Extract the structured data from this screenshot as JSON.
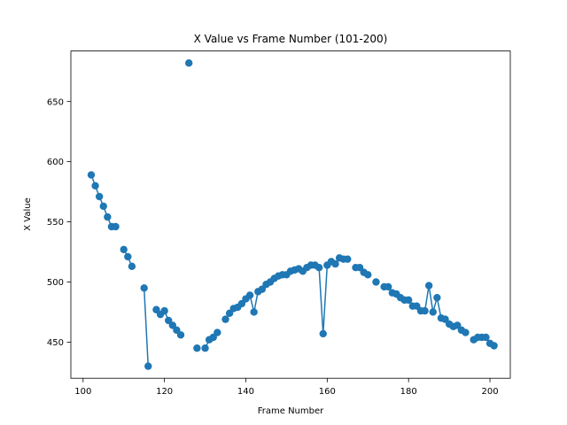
{
  "chart_data": {
    "type": "line",
    "title": "X Value vs Frame Number (101-200)",
    "xlabel": "Frame Number",
    "ylabel": "X Value",
    "xlim": [
      97,
      205
    ],
    "ylim": [
      420,
      692
    ],
    "xticks": [
      100,
      120,
      140,
      160,
      180,
      200
    ],
    "yticks": [
      450,
      500,
      550,
      600,
      650
    ],
    "grid": false,
    "series": [
      {
        "color": "#1f77b4",
        "marker": "circle",
        "points": [
          {
            "x": 102,
            "y": 589,
            "gap_before": false
          },
          {
            "x": 103,
            "y": 580,
            "gap_before": false
          },
          {
            "x": 104,
            "y": 571,
            "gap_before": false
          },
          {
            "x": 105,
            "y": 563,
            "gap_before": false
          },
          {
            "x": 106,
            "y": 554,
            "gap_before": false
          },
          {
            "x": 107,
            "y": 546,
            "gap_before": false
          },
          {
            "x": 108,
            "y": 546,
            "gap_before": false
          },
          {
            "x": 110,
            "y": 527,
            "gap_before": true
          },
          {
            "x": 111,
            "y": 521,
            "gap_before": false
          },
          {
            "x": 112,
            "y": 513,
            "gap_before": false
          },
          {
            "x": 115,
            "y": 495,
            "gap_before": true
          },
          {
            "x": 116,
            "y": 430,
            "gap_before": false
          },
          {
            "x": 118,
            "y": 477,
            "gap_before": true
          },
          {
            "x": 119,
            "y": 473,
            "gap_before": false
          },
          {
            "x": 120,
            "y": 476,
            "gap_before": false
          },
          {
            "x": 121,
            "y": 468,
            "gap_before": false
          },
          {
            "x": 122,
            "y": 464,
            "gap_before": false
          },
          {
            "x": 123,
            "y": 460,
            "gap_before": false
          },
          {
            "x": 124,
            "y": 456,
            "gap_before": false
          },
          {
            "x": 126,
            "y": 682,
            "gap_before": true
          },
          {
            "x": 128,
            "y": 445,
            "gap_before": true
          },
          {
            "x": 130,
            "y": 445,
            "gap_before": true
          },
          {
            "x": 131,
            "y": 452,
            "gap_before": false
          },
          {
            "x": 132,
            "y": 454,
            "gap_before": false
          },
          {
            "x": 133,
            "y": 458,
            "gap_before": false
          },
          {
            "x": 135,
            "y": 469,
            "gap_before": true
          },
          {
            "x": 136,
            "y": 474,
            "gap_before": false
          },
          {
            "x": 137,
            "y": 478,
            "gap_before": false
          },
          {
            "x": 138,
            "y": 479,
            "gap_before": false
          },
          {
            "x": 139,
            "y": 482,
            "gap_before": false
          },
          {
            "x": 140,
            "y": 486,
            "gap_before": false
          },
          {
            "x": 141,
            "y": 489,
            "gap_before": false
          },
          {
            "x": 142,
            "y": 475,
            "gap_before": false
          },
          {
            "x": 143,
            "y": 492,
            "gap_before": false
          },
          {
            "x": 144,
            "y": 494,
            "gap_before": false
          },
          {
            "x": 145,
            "y": 498,
            "gap_before": false
          },
          {
            "x": 146,
            "y": 500,
            "gap_before": false
          },
          {
            "x": 147,
            "y": 503,
            "gap_before": false
          },
          {
            "x": 148,
            "y": 505,
            "gap_before": false
          },
          {
            "x": 149,
            "y": 506,
            "gap_before": false
          },
          {
            "x": 150,
            "y": 506,
            "gap_before": false
          },
          {
            "x": 151,
            "y": 509,
            "gap_before": false
          },
          {
            "x": 152,
            "y": 510,
            "gap_before": false
          },
          {
            "x": 153,
            "y": 511,
            "gap_before": false
          },
          {
            "x": 154,
            "y": 509,
            "gap_before": false
          },
          {
            "x": 155,
            "y": 512,
            "gap_before": false
          },
          {
            "x": 156,
            "y": 514,
            "gap_before": false
          },
          {
            "x": 157,
            "y": 514,
            "gap_before": false
          },
          {
            "x": 158,
            "y": 512,
            "gap_before": false
          },
          {
            "x": 159,
            "y": 457,
            "gap_before": false
          },
          {
            "x": 160,
            "y": 514,
            "gap_before": false
          },
          {
            "x": 161,
            "y": 517,
            "gap_before": false
          },
          {
            "x": 162,
            "y": 515,
            "gap_before": false
          },
          {
            "x": 163,
            "y": 520,
            "gap_before": false
          },
          {
            "x": 164,
            "y": 519,
            "gap_before": false
          },
          {
            "x": 165,
            "y": 519,
            "gap_before": false
          },
          {
            "x": 167,
            "y": 512,
            "gap_before": true
          },
          {
            "x": 168,
            "y": 512,
            "gap_before": false
          },
          {
            "x": 169,
            "y": 508,
            "gap_before": false
          },
          {
            "x": 170,
            "y": 506,
            "gap_before": false
          },
          {
            "x": 172,
            "y": 500,
            "gap_before": true
          },
          {
            "x": 174,
            "y": 496,
            "gap_before": true
          },
          {
            "x": 175,
            "y": 496,
            "gap_before": false
          },
          {
            "x": 176,
            "y": 491,
            "gap_before": false
          },
          {
            "x": 177,
            "y": 490,
            "gap_before": false
          },
          {
            "x": 178,
            "y": 487,
            "gap_before": false
          },
          {
            "x": 179,
            "y": 485,
            "gap_before": false
          },
          {
            "x": 180,
            "y": 485,
            "gap_before": false
          },
          {
            "x": 181,
            "y": 480,
            "gap_before": false
          },
          {
            "x": 182,
            "y": 480,
            "gap_before": false
          },
          {
            "x": 183,
            "y": 476,
            "gap_before": false
          },
          {
            "x": 184,
            "y": 476,
            "gap_before": false
          },
          {
            "x": 185,
            "y": 497,
            "gap_before": false
          },
          {
            "x": 186,
            "y": 475,
            "gap_before": false
          },
          {
            "x": 187,
            "y": 487,
            "gap_before": false
          },
          {
            "x": 188,
            "y": 470,
            "gap_before": false
          },
          {
            "x": 189,
            "y": 469,
            "gap_before": false
          },
          {
            "x": 190,
            "y": 465,
            "gap_before": false
          },
          {
            "x": 191,
            "y": 463,
            "gap_before": false
          },
          {
            "x": 192,
            "y": 464,
            "gap_before": false
          },
          {
            "x": 193,
            "y": 460,
            "gap_before": false
          },
          {
            "x": 194,
            "y": 458,
            "gap_before": false
          },
          {
            "x": 196,
            "y": 452,
            "gap_before": true
          },
          {
            "x": 197,
            "y": 454,
            "gap_before": false
          },
          {
            "x": 198,
            "y": 454,
            "gap_before": false
          },
          {
            "x": 199,
            "y": 454,
            "gap_before": false
          },
          {
            "x": 200,
            "y": 449,
            "gap_before": false
          },
          {
            "x": 201,
            "y": 447,
            "gap_before": false
          }
        ]
      }
    ]
  }
}
